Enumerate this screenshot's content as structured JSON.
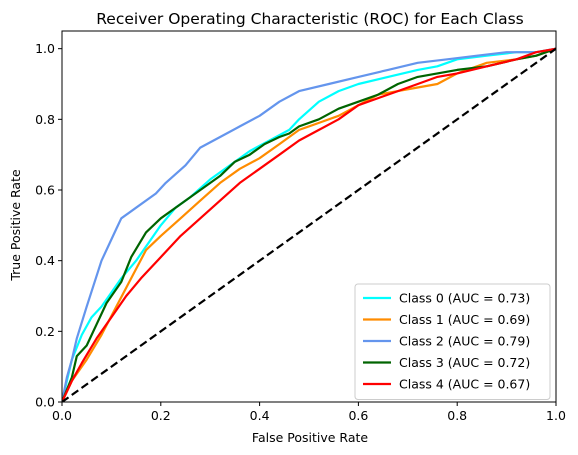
{
  "chart_data": {
    "type": "line",
    "title": "Receiver Operating Characteristic (ROC) for Each Class",
    "xlabel": "False Positive Rate",
    "ylabel": "True Positive Rate",
    "xlim": [
      0.0,
      1.0
    ],
    "ylim": [
      0.0,
      1.05
    ],
    "xticks": [
      "0.0",
      "0.2",
      "0.4",
      "0.6",
      "0.8",
      "1.0"
    ],
    "yticks": [
      "0.0",
      "0.2",
      "0.4",
      "0.6",
      "0.8",
      "1.0"
    ],
    "xtick_values": [
      0.0,
      0.2,
      0.4,
      0.6,
      0.8,
      1.0
    ],
    "ytick_values": [
      0.0,
      0.2,
      0.4,
      0.6,
      0.8,
      1.0
    ],
    "grid": false,
    "legend_position": "lower-right",
    "series": [
      {
        "name": "Class 0 (AUC = 0.73)",
        "color": "#00FFFF",
        "x": [
          0.0,
          0.01,
          0.02,
          0.04,
          0.06,
          0.08,
          0.1,
          0.12,
          0.15,
          0.18,
          0.2,
          0.23,
          0.26,
          0.3,
          0.34,
          0.38,
          0.42,
          0.46,
          0.48,
          0.52,
          0.56,
          0.6,
          0.66,
          0.72,
          0.76,
          0.8,
          0.86,
          0.92,
          0.96,
          1.0
        ],
        "y": [
          0.0,
          0.06,
          0.12,
          0.19,
          0.24,
          0.27,
          0.31,
          0.35,
          0.4,
          0.46,
          0.5,
          0.55,
          0.58,
          0.63,
          0.67,
          0.71,
          0.74,
          0.77,
          0.8,
          0.85,
          0.88,
          0.9,
          0.92,
          0.94,
          0.95,
          0.97,
          0.98,
          0.99,
          0.99,
          1.0
        ]
      },
      {
        "name": "Class 1 (AUC = 0.69)",
        "color": "#FF8C00",
        "x": [
          0.0,
          0.02,
          0.05,
          0.08,
          0.11,
          0.14,
          0.17,
          0.2,
          0.24,
          0.28,
          0.32,
          0.36,
          0.4,
          0.44,
          0.48,
          0.52,
          0.56,
          0.6,
          0.64,
          0.68,
          0.72,
          0.76,
          0.8,
          0.86,
          0.92,
          0.96,
          1.0
        ],
        "y": [
          0.0,
          0.06,
          0.12,
          0.19,
          0.27,
          0.35,
          0.43,
          0.47,
          0.52,
          0.57,
          0.62,
          0.66,
          0.69,
          0.73,
          0.77,
          0.79,
          0.81,
          0.84,
          0.87,
          0.88,
          0.89,
          0.9,
          0.93,
          0.96,
          0.97,
          0.98,
          1.0
        ]
      },
      {
        "name": "Class 2 (AUC = 0.79)",
        "color": "#6495ED",
        "x": [
          0.0,
          0.01,
          0.02,
          0.03,
          0.05,
          0.08,
          0.11,
          0.12,
          0.15,
          0.19,
          0.21,
          0.25,
          0.28,
          0.32,
          0.36,
          0.4,
          0.44,
          0.48,
          0.54,
          0.6,
          0.66,
          0.72,
          0.78,
          0.84,
          0.9,
          0.96,
          1.0
        ],
        "y": [
          0.0,
          0.07,
          0.12,
          0.18,
          0.27,
          0.4,
          0.49,
          0.52,
          0.55,
          0.59,
          0.62,
          0.67,
          0.72,
          0.75,
          0.78,
          0.81,
          0.85,
          0.88,
          0.9,
          0.92,
          0.94,
          0.96,
          0.97,
          0.98,
          0.99,
          0.99,
          1.0
        ]
      },
      {
        "name": "Class 3 (AUC = 0.72)",
        "color": "#006400",
        "x": [
          0.0,
          0.02,
          0.03,
          0.05,
          0.07,
          0.09,
          0.12,
          0.14,
          0.17,
          0.2,
          0.24,
          0.28,
          0.32,
          0.35,
          0.38,
          0.41,
          0.44,
          0.46,
          0.48,
          0.52,
          0.56,
          0.6,
          0.64,
          0.68,
          0.72,
          0.76,
          0.8,
          0.86,
          0.92,
          0.96,
          1.0
        ],
        "y": [
          0.0,
          0.07,
          0.13,
          0.16,
          0.22,
          0.28,
          0.34,
          0.41,
          0.48,
          0.52,
          0.56,
          0.6,
          0.64,
          0.68,
          0.7,
          0.73,
          0.75,
          0.76,
          0.78,
          0.8,
          0.83,
          0.85,
          0.87,
          0.9,
          0.92,
          0.93,
          0.94,
          0.95,
          0.97,
          0.98,
          1.0
        ]
      },
      {
        "name": "Class 4 (AUC = 0.67)",
        "color": "#FF0000",
        "x": [
          0.0,
          0.02,
          0.04,
          0.07,
          0.1,
          0.13,
          0.16,
          0.2,
          0.24,
          0.28,
          0.32,
          0.36,
          0.4,
          0.44,
          0.48,
          0.52,
          0.56,
          0.6,
          0.64,
          0.68,
          0.72,
          0.76,
          0.8,
          0.86,
          0.92,
          0.96,
          1.0
        ],
        "y": [
          0.0,
          0.06,
          0.11,
          0.18,
          0.24,
          0.3,
          0.35,
          0.41,
          0.47,
          0.52,
          0.57,
          0.62,
          0.66,
          0.7,
          0.74,
          0.77,
          0.8,
          0.84,
          0.86,
          0.88,
          0.9,
          0.92,
          0.93,
          0.95,
          0.97,
          0.99,
          1.0
        ]
      }
    ],
    "reference_line": {
      "color": "#000000",
      "style": "dashed",
      "x": [
        0.0,
        1.0
      ],
      "y": [
        0.0,
        1.0
      ]
    }
  }
}
